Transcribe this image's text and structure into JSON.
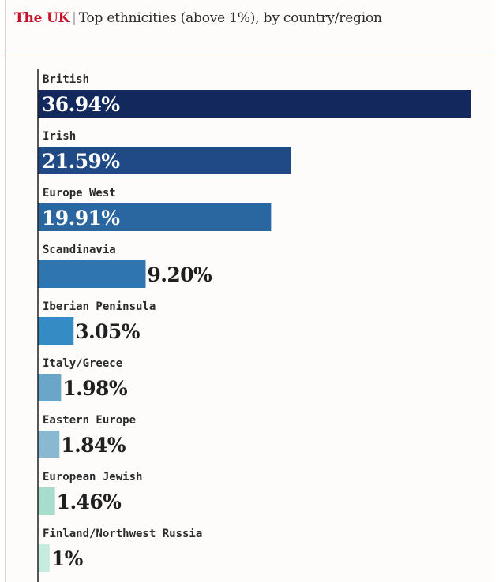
{
  "header": {
    "brand": "The UK",
    "separator": "|",
    "subtitle": "Top ethnicities (above 1%), by country/region"
  },
  "chart_data": {
    "type": "bar",
    "orientation": "horizontal",
    "title": "Top ethnicities (above 1%), by country/region",
    "categories": [
      "British",
      "Irish",
      "Europe West",
      "Scandinavia",
      "Iberian Peninsula",
      "Italy/Greece",
      "Eastern Europe",
      "European Jewish",
      "Finland/Northwest Russia"
    ],
    "values": [
      36.94,
      21.59,
      19.91,
      9.2,
      3.05,
      1.98,
      1.84,
      1.46,
      1
    ],
    "labels": [
      "36.94%",
      "21.59%",
      "19.91%",
      "9.20%",
      "3.05%",
      "1.98%",
      "1.84%",
      "1.46%",
      "1%"
    ],
    "colors": [
      "#13295e",
      "#1f4a86",
      "#2a67a0",
      "#2f75b0",
      "#358cc5",
      "#6aa6c8",
      "#88b9d0",
      "#a8dccd",
      "#c5ecdf"
    ],
    "xlim": [
      0,
      36.94
    ],
    "grid": false,
    "legend": "none"
  }
}
